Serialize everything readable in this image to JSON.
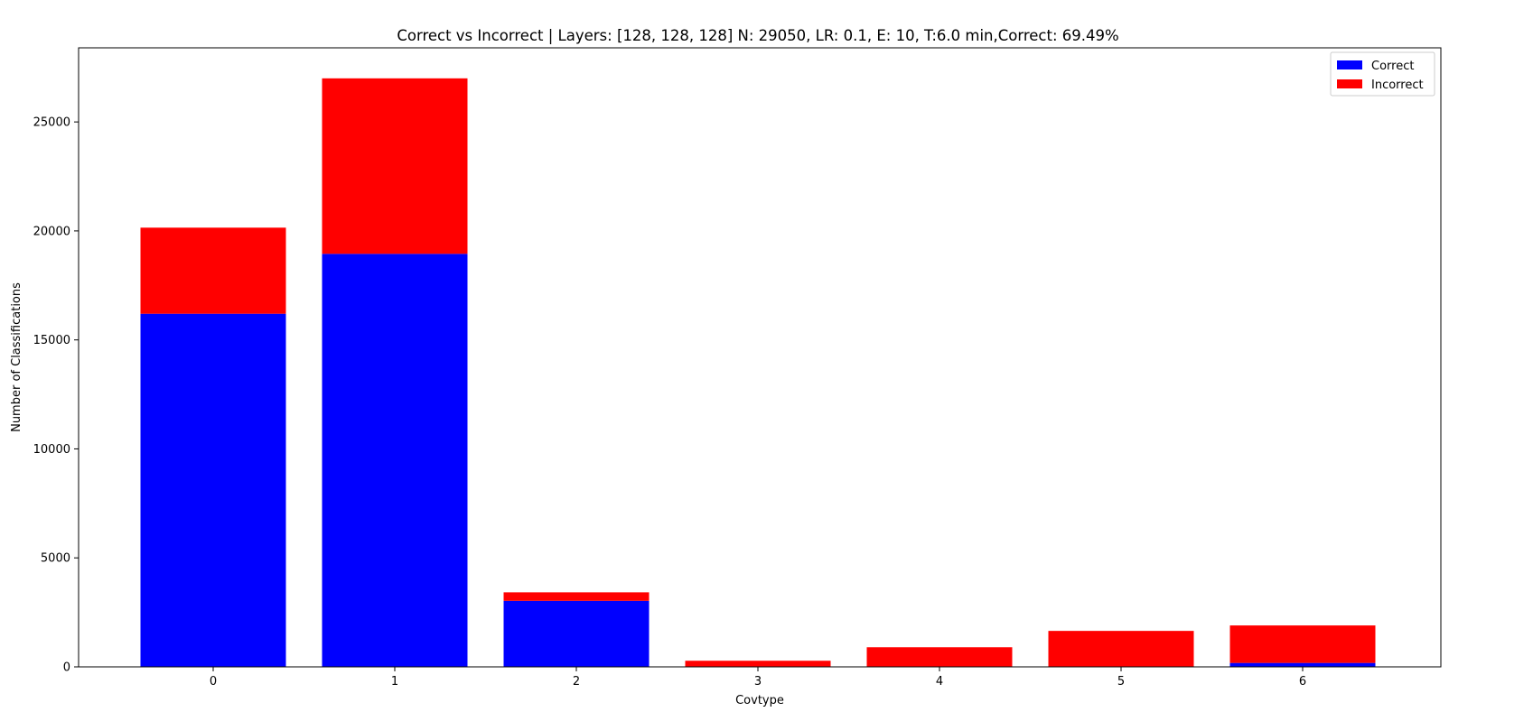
{
  "chart_data": {
    "type": "bar",
    "stacked": true,
    "title": "Correct vs Incorrect | Layers: [128, 128, 128] N: 29050, LR: 0.1, E: 10, T:6.0 min,Correct: 69.49%",
    "xlabel": "Covtype",
    "ylabel": "Number of Classifications",
    "categories": [
      "0",
      "1",
      "2",
      "3",
      "4",
      "5",
      "6"
    ],
    "series": [
      {
        "name": "Correct",
        "color": "#0000ff",
        "values": [
          16200,
          18950,
          3030,
          0,
          0,
          0,
          180
        ]
      },
      {
        "name": "Incorrect",
        "color": "#ff0000",
        "values": [
          3950,
          8050,
          390,
          280,
          900,
          1650,
          1720
        ]
      }
    ],
    "ylim": [
      0,
      28400
    ],
    "yticks": [
      0,
      5000,
      10000,
      15000,
      20000,
      25000
    ],
    "grid": false,
    "legend_position": "top-right"
  }
}
